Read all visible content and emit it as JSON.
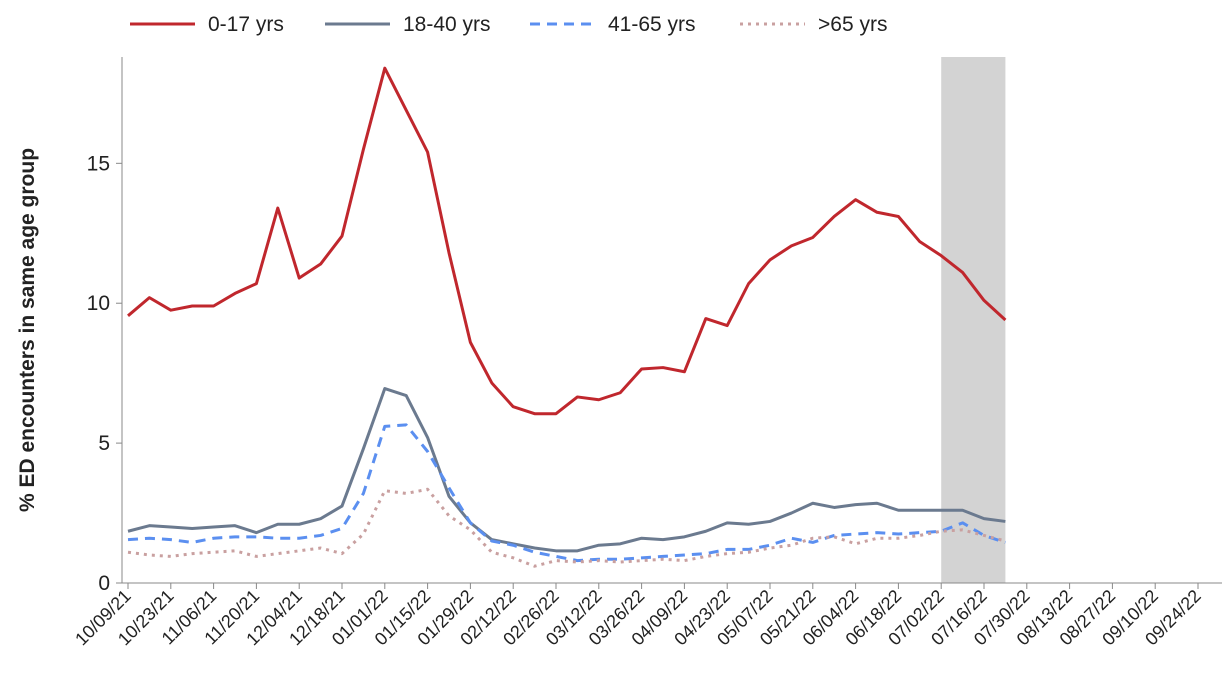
{
  "chart_data": {
    "type": "line",
    "y_label": "% ED encounters in same age group",
    "categories": [
      "10/09/21",
      null,
      "10/23/21",
      null,
      "11/06/21",
      null,
      "11/20/21",
      null,
      "12/04/21",
      null,
      "12/18/21",
      null,
      "01/01/22",
      null,
      "01/15/22",
      null,
      "01/29/22",
      null,
      "02/12/22",
      null,
      "02/26/22",
      null,
      "03/12/22",
      null,
      "03/26/22",
      null,
      "04/09/22",
      null,
      "04/23/22",
      null,
      "05/07/22",
      null,
      "05/21/22",
      null,
      "06/04/22",
      null,
      "06/18/22",
      null,
      "07/02/22",
      null,
      "07/16/22",
      null,
      "07/30/22",
      null,
      "08/13/22",
      null,
      "08/27/22",
      null,
      "09/10/22",
      null,
      "09/24/22",
      null
    ],
    "series": [
      {
        "name": "0-17 yrs",
        "color": "#c0272d",
        "dash": "solid",
        "values": [
          9.55,
          10.2,
          9.75,
          9.9,
          9.9,
          10.35,
          10.7,
          13.4,
          10.9,
          11.4,
          12.4,
          15.5,
          18.4,
          16.9,
          15.4,
          11.8,
          8.6,
          7.15,
          6.3,
          6.05,
          6.05,
          6.65,
          6.55,
          6.8,
          7.65,
          7.7,
          7.55,
          9.45,
          9.2,
          10.7,
          11.55,
          12.05,
          12.35,
          13.1,
          13.7,
          13.25,
          13.1,
          12.2,
          11.7,
          11.1,
          10.1,
          9.4,
          null,
          null,
          null,
          null,
          null,
          null,
          null,
          null,
          null,
          null
        ]
      },
      {
        "name": "18-40 yrs",
        "color": "#6b7a8f",
        "dash": "solid",
        "values": [
          1.85,
          2.05,
          2.0,
          1.95,
          2.0,
          2.05,
          1.8,
          2.1,
          2.1,
          2.3,
          2.75,
          4.8,
          6.95,
          6.7,
          5.2,
          3.1,
          2.15,
          1.55,
          1.4,
          1.25,
          1.15,
          1.15,
          1.35,
          1.4,
          1.6,
          1.55,
          1.65,
          1.85,
          2.15,
          2.1,
          2.2,
          2.5,
          2.85,
          2.7,
          2.8,
          2.85,
          2.6,
          2.6,
          2.6,
          2.6,
          2.3,
          2.2,
          null,
          null,
          null,
          null,
          null,
          null,
          null,
          null,
          null,
          null
        ]
      },
      {
        "name": "41-65 yrs",
        "color": "#5b8ff0",
        "dash": "dashed",
        "values": [
          1.55,
          1.6,
          1.55,
          1.45,
          1.6,
          1.65,
          1.65,
          1.6,
          1.6,
          1.7,
          1.95,
          3.2,
          5.6,
          5.65,
          4.7,
          3.4,
          2.15,
          1.5,
          1.35,
          1.1,
          0.95,
          0.8,
          0.85,
          0.85,
          0.9,
          0.95,
          1.0,
          1.05,
          1.2,
          1.2,
          1.35,
          1.6,
          1.45,
          1.7,
          1.75,
          1.8,
          1.75,
          1.8,
          1.85,
          2.15,
          1.7,
          1.45,
          null,
          null,
          null,
          null,
          null,
          null,
          null,
          null,
          null,
          null
        ]
      },
      {
        "name": ">65 yrs",
        "color": "#c9a0a0",
        "dash": "dotted",
        "values": [
          1.1,
          1.0,
          0.95,
          1.05,
          1.1,
          1.15,
          0.95,
          1.05,
          1.15,
          1.25,
          1.05,
          1.75,
          3.3,
          3.2,
          3.35,
          2.4,
          1.9,
          1.1,
          0.9,
          0.6,
          0.8,
          0.75,
          0.8,
          0.75,
          0.8,
          0.85,
          0.8,
          0.95,
          1.05,
          1.1,
          1.25,
          1.35,
          1.6,
          1.65,
          1.4,
          1.6,
          1.6,
          1.7,
          1.85,
          1.9,
          1.7,
          1.5,
          null,
          null,
          null,
          null,
          null,
          null,
          null,
          null,
          null,
          null
        ]
      }
    ],
    "shaded": [
      38,
      41
    ],
    "ylim": [
      0,
      18.8
    ],
    "yticks": [
      0,
      5,
      10,
      15
    ],
    "grid": false,
    "legend": "top"
  }
}
